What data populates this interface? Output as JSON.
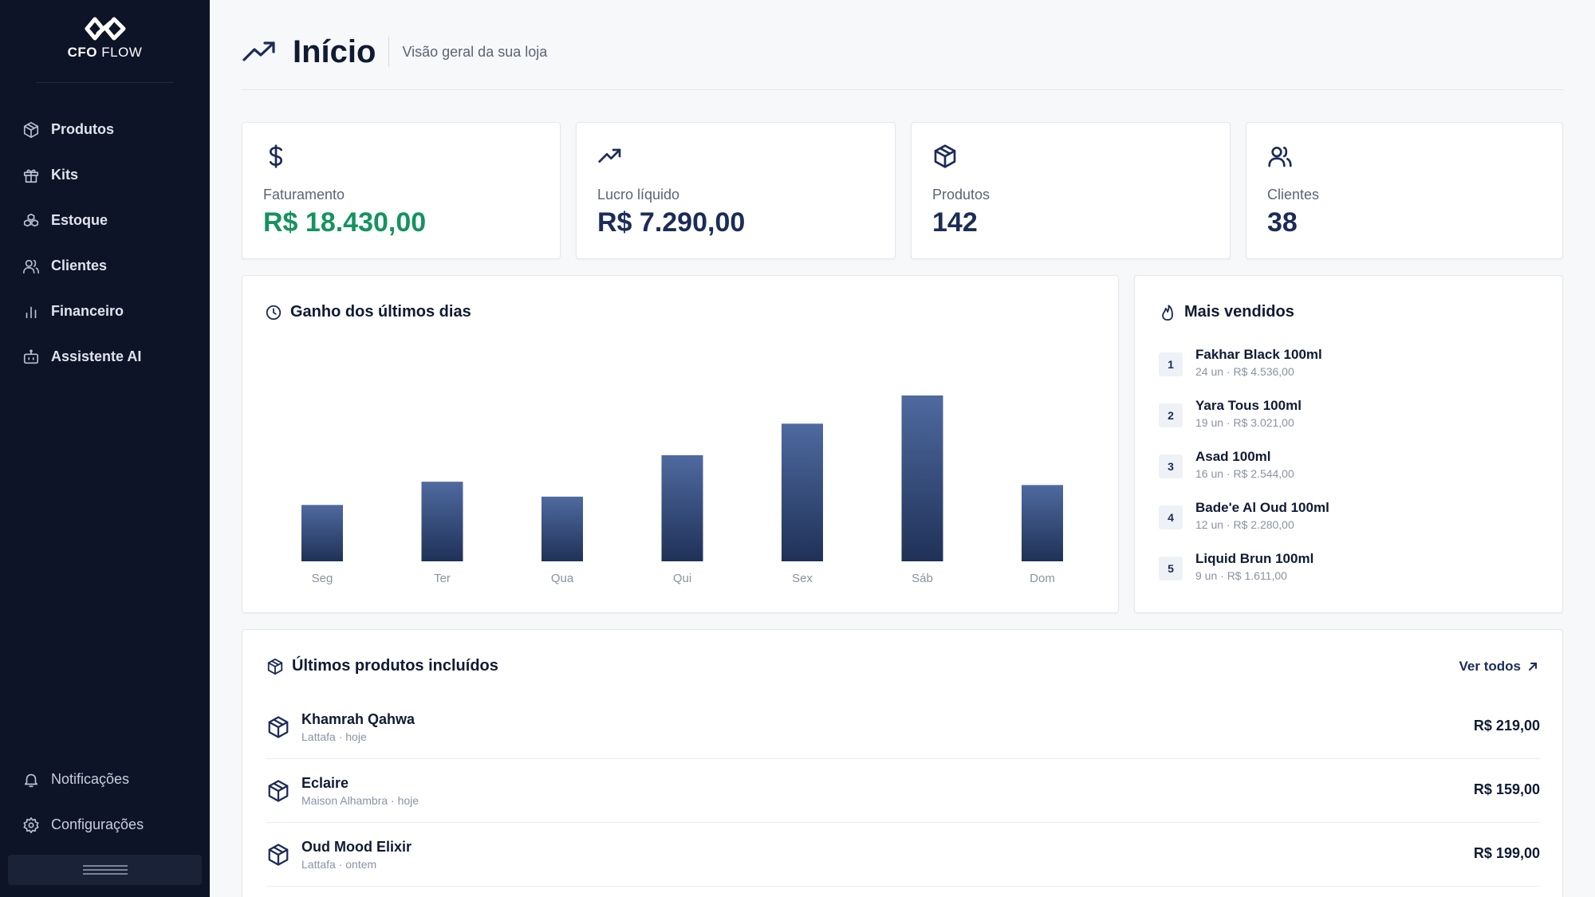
{
  "app": {
    "brand_bold": "CFO",
    "brand_light": "FLOW"
  },
  "sidebar": {
    "items": [
      {
        "label": "Produtos",
        "icon": "box-icon"
      },
      {
        "label": "Kits",
        "icon": "gift-icon"
      },
      {
        "label": "Estoque",
        "icon": "boxes-icon"
      },
      {
        "label": "Clientes",
        "icon": "users-icon"
      },
      {
        "label": "Financeiro",
        "icon": "bar-chart-icon"
      },
      {
        "label": "Assistente AI",
        "icon": "bot-icon"
      }
    ],
    "bottom": [
      {
        "label": "Notificações",
        "icon": "bell-icon"
      },
      {
        "label": "Configurações",
        "icon": "gear-icon"
      }
    ]
  },
  "header": {
    "title": "Início",
    "subtitle": "Visão geral da sua loja"
  },
  "stats": [
    {
      "label": "Faturamento",
      "value": "R$ 18.430,00",
      "icon": "dollar-icon",
      "color": "#15935f"
    },
    {
      "label": "Lucro líquido",
      "value": "R$ 7.290,00",
      "icon": "trend-up-icon",
      "color": "#1b2c57"
    },
    {
      "label": "Produtos",
      "value": "142",
      "icon": "box-icon",
      "color": "#1b2c57"
    },
    {
      "label": "Clientes",
      "value": "38",
      "icon": "users-icon",
      "color": "#1b2c57"
    }
  ],
  "earnings": {
    "title": "Ganho dos últimos dias",
    "chart_data": {
      "type": "bar",
      "categories": [
        "Seg",
        "Ter",
        "Qua",
        "Qui",
        "Sex",
        "Sáb",
        "Dom"
      ],
      "values": [
        34,
        48,
        39,
        64,
        83,
        100,
        46
      ],
      "colors": {
        "bar_top": "#4f6aa0",
        "bar_bottom": "#1f3157"
      }
    }
  },
  "top_sellers": {
    "title": "Mais vendidos",
    "items": [
      {
        "rank": "1",
        "name": "Fakhar Black 100ml",
        "meta": "24 un · R$ 4.536,00"
      },
      {
        "rank": "2",
        "name": "Yara Tous 100ml",
        "meta": "19 un · R$ 3.021,00"
      },
      {
        "rank": "3",
        "name": "Asad 100ml",
        "meta": "16 un · R$ 2.544,00"
      },
      {
        "rank": "4",
        "name": "Bade'e Al Oud 100ml",
        "meta": "12 un · R$ 2.280,00"
      },
      {
        "rank": "5",
        "name": "Liquid Brun 100ml",
        "meta": "9 un · R$ 1.611,00"
      }
    ]
  },
  "recent_products": {
    "title": "Últimos produtos incluídos",
    "link": "Ver todos",
    "items": [
      {
        "name": "Khamrah Qahwa",
        "meta": "Lattafa · hoje",
        "price": "R$ 219,00"
      },
      {
        "name": "Eclaire",
        "meta": "Maison Alhambra · hoje",
        "price": "R$ 159,00"
      },
      {
        "name": "Oud Mood Elixir",
        "meta": "Lattafa · ontem",
        "price": "R$ 199,00"
      }
    ]
  }
}
